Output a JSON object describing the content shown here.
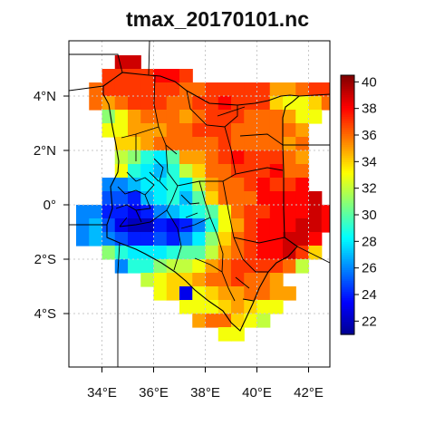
{
  "title": "tmax_20170101.nc",
  "x_ticks": [
    {
      "lon": 34,
      "label": "34°E"
    },
    {
      "lon": 36,
      "label": "36°E"
    },
    {
      "lon": 38,
      "label": "38°E"
    },
    {
      "lon": 40,
      "label": "40°E"
    },
    {
      "lon": 42,
      "label": "42°E"
    }
  ],
  "y_ticks": [
    {
      "lat": 4,
      "label": "4°N"
    },
    {
      "lat": 2,
      "label": "2°N"
    },
    {
      "lat": 0,
      "label": "0°"
    },
    {
      "lat": -2,
      "label": "2°S"
    },
    {
      "lat": -4,
      "label": "4°S"
    }
  ],
  "colorbar": {
    "min": 21,
    "max": 40.5,
    "ticks": [
      {
        "value": 22,
        "label": "22"
      },
      {
        "value": 24,
        "label": "24"
      },
      {
        "value": 26,
        "label": "26"
      },
      {
        "value": 28,
        "label": "28"
      },
      {
        "value": 30,
        "label": "30"
      },
      {
        "value": 32,
        "label": "32"
      },
      {
        "value": 34,
        "label": "34"
      },
      {
        "value": 36,
        "label": "36"
      },
      {
        "value": 38,
        "label": "38"
      },
      {
        "value": 40,
        "label": "40"
      }
    ]
  },
  "chart_data": {
    "type": "heatmap",
    "title": "tmax_20170101.nc",
    "xlim": [
      32.7,
      43.0
    ],
    "ylim": [
      -5.9,
      5.4
    ],
    "grid": true,
    "legend_placement": "right",
    "cell_size_deg": 0.5,
    "lon0": 33.25,
    "lat0": 5.25,
    "row_step": -0.5,
    "colormap": [
      "#00008f",
      "#0000ff",
      "#007fff",
      "#00ffff",
      "#7fff7f",
      "#ffff00",
      "#ff7f00",
      "#ff0000",
      "#7f0000"
    ],
    "rows": [
      {
        "lat": 5.25,
        "lon_start": 34.75,
        "values": [
          39,
          39
        ]
      },
      {
        "lat": 4.75,
        "lon_start": 34.25,
        "values": [
          37,
          37,
          37,
          37,
          38,
          38,
          37
        ]
      },
      {
        "lat": 4.25,
        "lon_start": 33.75,
        "values": [
          36,
          37,
          37,
          37,
          37,
          37,
          37,
          36,
          36,
          37,
          37,
          37,
          37,
          37,
          35,
          35,
          36,
          37,
          37
        ]
      },
      {
        "lat": 3.75,
        "lon_start": 33.75,
        "values": [
          36,
          35,
          36,
          37,
          37,
          37,
          36,
          36,
          37,
          37,
          38,
          37,
          37,
          37,
          34,
          33,
          33,
          34,
          36
        ]
      },
      {
        "lat": 3.25,
        "lon_start": 34.25,
        "values": [
          31,
          33,
          35,
          36,
          36,
          36,
          35,
          36,
          37,
          37,
          37,
          36,
          36,
          36,
          35,
          33,
          33
        ]
      },
      {
        "lat": 2.75,
        "lon_start": 34.25,
        "values": [
          33,
          33,
          35,
          35,
          35,
          36,
          36,
          37,
          37,
          37,
          36,
          36,
          36,
          36,
          36,
          35
        ]
      },
      {
        "lat": 2.25,
        "lon_start": 34.75,
        "values": [
          34,
          34,
          35,
          36,
          36,
          36,
          36,
          36,
          37,
          36,
          36,
          36,
          36,
          35,
          36
        ]
      },
      {
        "lat": 1.75,
        "lon_start": 34.75,
        "values": [
          32,
          31,
          29,
          28,
          30,
          35,
          35,
          36,
          37,
          38,
          37,
          37,
          37,
          36,
          35
        ]
      },
      {
        "lat": 1.25,
        "lon_start": 34.75,
        "values": [
          33,
          29,
          28,
          27,
          29,
          32,
          34,
          36,
          36,
          37,
          37,
          37,
          38,
          36,
          36
        ]
      },
      {
        "lat": 0.75,
        "lon_start": 34.25,
        "values": [
          26,
          26,
          27,
          28,
          28,
          29,
          28,
          32,
          35,
          36,
          36,
          37,
          38,
          37,
          37,
          38
        ]
      },
      {
        "lat": 0.25,
        "lon_start": 34.25,
        "values": [
          25,
          25,
          24,
          27,
          28,
          29,
          27,
          30,
          34,
          36,
          36,
          36,
          38,
          38,
          38,
          38,
          39
        ]
      },
      {
        "lat": -0.25,
        "lon_start": 33.25,
        "values": [
          26,
          26,
          24,
          24,
          23,
          24,
          26,
          27,
          28,
          29,
          30,
          33,
          36,
          37,
          37,
          38,
          38,
          38,
          39,
          38
        ]
      },
      {
        "lat": -0.75,
        "lon_start": 33.25,
        "values": [
          26,
          27,
          25,
          23,
          22,
          22,
          24,
          23,
          24,
          26,
          29,
          33,
          35,
          37,
          38,
          38,
          38,
          39,
          39,
          38
        ]
      },
      {
        "lat": -1.25,
        "lon_start": 33.25,
        "values": [
          26,
          27,
          26,
          25,
          24,
          24,
          25,
          24,
          26,
          28,
          31,
          34,
          36,
          37,
          38,
          38,
          39,
          39,
          38
        ]
      },
      {
        "lat": -1.75,
        "lon_start": 34.25,
        "values": [
          31,
          29,
          28,
          28,
          28,
          29,
          30,
          30,
          32,
          35,
          36,
          37,
          38,
          38,
          39,
          37,
          34
        ]
      },
      {
        "lat": -2.25,
        "lon_start": 34.75,
        "values": [
          26,
          29,
          29,
          31,
          32,
          32,
          33,
          35,
          36,
          37,
          37,
          37,
          37,
          36,
          32
        ]
      },
      {
        "lat": -2.75,
        "lon_start": 35.75,
        "values": [
          32,
          33,
          34,
          34,
          35,
          36,
          36,
          37,
          36,
          36,
          35
        ]
      },
      {
        "lat": -3.25,
        "lon_start": 36.25,
        "values": [
          33,
          34,
          23,
          33,
          34,
          35,
          35,
          36,
          36,
          35,
          35
        ]
      },
      {
        "lat": -3.75,
        "lon_start": 37.25,
        "values": [
          33,
          33,
          33,
          34,
          35,
          34,
          33,
          33
        ]
      },
      {
        "lat": -4.25,
        "lon_start": 37.75,
        "values": [
          35,
          36,
          36,
          34,
          33,
          32
        ]
      },
      {
        "lat": -4.75,
        "lon_start": 38.75,
        "values": [
          33,
          33
        ]
      }
    ]
  }
}
